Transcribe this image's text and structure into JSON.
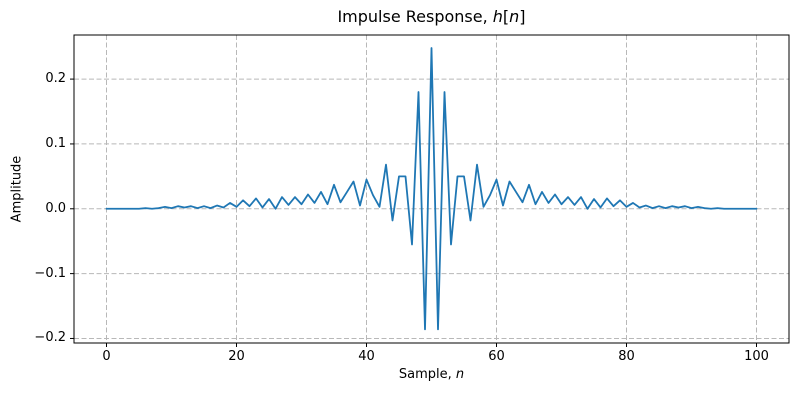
{
  "figure": {
    "title": "Impulse Response, h[n]",
    "title_parts": {
      "prefix": "Impulse Response, ",
      "var1": "h",
      "open": "[",
      "var2": "n",
      "close": "]"
    },
    "xlabel": "Sample, n",
    "xlabel_parts": {
      "prefix": "Sample, ",
      "var": "n"
    },
    "ylabel": "Amplitude"
  },
  "chart_data": {
    "type": "line",
    "title": "Impulse Response, h[n]",
    "xlabel": "Sample, n",
    "ylabel": "Amplitude",
    "x_start": 0,
    "x_step": 1,
    "n_points": 101,
    "values": [
      0.0,
      0.0,
      0.0,
      0.0,
      0.0,
      0.0,
      0.001,
      0.0,
      0.001,
      0.003,
      0.001,
      0.004,
      0.002,
      0.004,
      0.001,
      0.004,
      0.001,
      0.005,
      0.002,
      0.009,
      0.003,
      0.013,
      0.004,
      0.016,
      0.002,
      0.015,
      0.0,
      0.018,
      0.006,
      0.018,
      0.007,
      0.022,
      0.009,
      0.026,
      0.007,
      0.037,
      0.01,
      0.026,
      0.042,
      0.005,
      0.045,
      0.021,
      0.003,
      0.068,
      -0.018,
      0.05,
      0.05,
      -0.055,
      0.18,
      -0.186,
      0.248,
      -0.186,
      0.18,
      -0.055,
      0.05,
      0.05,
      -0.018,
      0.068,
      0.003,
      0.021,
      0.045,
      0.005,
      0.042,
      0.026,
      0.01,
      0.037,
      0.007,
      0.026,
      0.009,
      0.022,
      0.007,
      0.018,
      0.006,
      0.018,
      0.0,
      0.015,
      0.002,
      0.016,
      0.004,
      0.013,
      0.003,
      0.009,
      0.002,
      0.005,
      0.001,
      0.004,
      0.001,
      0.004,
      0.002,
      0.004,
      0.001,
      0.003,
      0.001,
      0.0,
      0.001,
      0.0,
      0.0,
      0.0,
      0.0,
      0.0,
      0.0
    ],
    "xlim": [
      -5,
      105
    ],
    "ylim": [
      -0.207,
      0.268
    ],
    "xticks": [
      0,
      20,
      40,
      60,
      80,
      100
    ],
    "xtick_labels": [
      "0",
      "20",
      "40",
      "60",
      "80",
      "100"
    ],
    "yticks": [
      0.2,
      0.1,
      0.0,
      -0.1,
      -0.2
    ],
    "ytick_labels": [
      "0.2",
      "0.1",
      "0.0",
      "−0.1",
      "−0.2"
    ],
    "grid": {
      "visible": true,
      "style": "dashed"
    },
    "legend": null,
    "line_color": "#1f77b4",
    "grid_color": "#b8b8b8",
    "spine_color": "#000000"
  }
}
